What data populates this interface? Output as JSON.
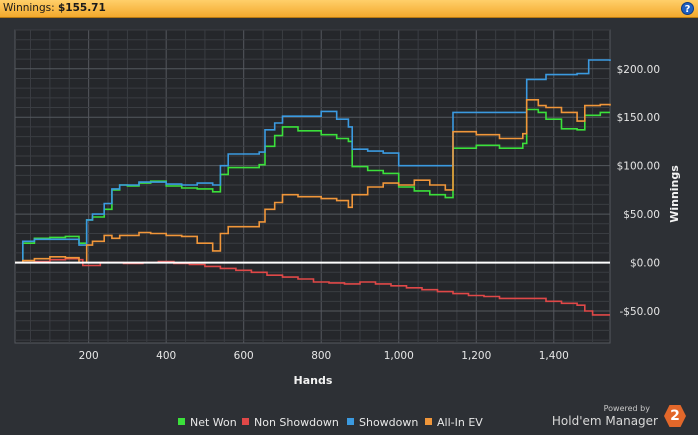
{
  "header": {
    "label": "Winnings:",
    "value": "$155.71",
    "help_icon": "question-icon",
    "help_glyph": "?"
  },
  "brand": {
    "powered_by": "Powered by",
    "name": "Hold'em Manager",
    "badge": "2"
  },
  "chart_data": {
    "type": "line",
    "title": "",
    "xlabel": "Hands",
    "ylabel": "Winnings",
    "xlim": [
      10,
      1545
    ],
    "ylim": [
      -83,
      240
    ],
    "x_ticks": [
      200,
      400,
      600,
      800,
      1000,
      1200,
      1400
    ],
    "x_tick_labels": [
      "200",
      "400",
      "600",
      "800",
      "1,000",
      "1,200",
      "1,400"
    ],
    "y_ticks": [
      -50,
      0,
      50,
      100,
      150,
      200
    ],
    "y_tick_labels": [
      "-$50.00",
      "$0.00",
      "$50.00",
      "$100.00",
      "$150.00",
      "$200.00"
    ],
    "grid": true,
    "zero_line": true,
    "legend_position": "bottom",
    "series": [
      {
        "name": "Net Won",
        "color": "#3be03b",
        "x": [
          10,
          30,
          60,
          100,
          140,
          175,
          195,
          210,
          240,
          260,
          280,
          300,
          330,
          360,
          400,
          440,
          480,
          520,
          540,
          560,
          600,
          640,
          655,
          680,
          700,
          740,
          800,
          840,
          870,
          880,
          920,
          960,
          1000,
          1040,
          1080,
          1120,
          1140,
          1200,
          1260,
          1320,
          1330,
          1360,
          1380,
          1420,
          1460,
          1480,
          1520,
          1545
        ],
        "y": [
          0,
          20,
          25,
          26,
          27,
          20,
          44,
          47,
          55,
          75,
          80,
          79,
          82,
          84,
          79,
          77,
          76,
          73,
          91,
          98,
          98,
          101,
          120,
          131,
          140,
          136,
          132,
          128,
          125,
          99,
          95,
          92,
          78,
          74,
          70,
          67,
          118,
          121,
          118,
          123,
          158,
          155,
          148,
          138,
          137,
          152,
          155,
          155
        ]
      },
      {
        "name": "Non Showdown",
        "color": "#e04848",
        "x": [
          10,
          60,
          100,
          140,
          175,
          185,
          230,
          290,
          340,
          380,
          420,
          460,
          500,
          540,
          580,
          620,
          660,
          700,
          740,
          780,
          820,
          860,
          900,
          940,
          980,
          1020,
          1060,
          1100,
          1140,
          1180,
          1220,
          1260,
          1300,
          1340,
          1380,
          1420,
          1460,
          1480,
          1500,
          1545
        ],
        "y": [
          0,
          1,
          3,
          4,
          3,
          -3,
          0,
          -1,
          0,
          1,
          -1,
          -2,
          -4,
          -6,
          -8,
          -10,
          -13,
          -15,
          -17,
          -20,
          -21,
          -22,
          -20,
          -22,
          -24,
          -26,
          -28,
          -30,
          -32,
          -34,
          -35,
          -37,
          -37,
          -37,
          -40,
          -42,
          -44,
          -50,
          -54,
          -54
        ]
      },
      {
        "name": "Showdown",
        "color": "#3b9ae0",
        "x": [
          10,
          30,
          60,
          100,
          140,
          175,
          195,
          210,
          240,
          260,
          280,
          330,
          360,
          400,
          440,
          480,
          520,
          540,
          560,
          600,
          640,
          655,
          680,
          700,
          740,
          800,
          840,
          870,
          880,
          920,
          960,
          1000,
          1040,
          1120,
          1140,
          1200,
          1260,
          1320,
          1330,
          1380,
          1420,
          1460,
          1490,
          1545
        ],
        "y": [
          0,
          22,
          24,
          24,
          24,
          18,
          44,
          50,
          61,
          76,
          80,
          83,
          83,
          81,
          80,
          82,
          80,
          100,
          112,
          112,
          114,
          137,
          144,
          151,
          151,
          156,
          148,
          140,
          117,
          115,
          113,
          100,
          100,
          100,
          155,
          155,
          155,
          155,
          189,
          194,
          194,
          195,
          209,
          208
        ]
      },
      {
        "name": "All-In EV",
        "color": "#f0963a",
        "x": [
          10,
          30,
          60,
          100,
          140,
          175,
          195,
          210,
          240,
          260,
          280,
          330,
          360,
          400,
          440,
          480,
          520,
          540,
          560,
          600,
          640,
          655,
          680,
          700,
          740,
          800,
          840,
          870,
          880,
          920,
          960,
          1000,
          1040,
          1080,
          1120,
          1140,
          1200,
          1260,
          1320,
          1330,
          1360,
          1380,
          1420,
          1460,
          1480,
          1520,
          1545
        ],
        "y": [
          0,
          2,
          4,
          6,
          5,
          0,
          18,
          22,
          28,
          25,
          28,
          31,
          30,
          28,
          27,
          20,
          12,
          30,
          37,
          37,
          42,
          55,
          62,
          70,
          68,
          66,
          64,
          57,
          70,
          78,
          82,
          80,
          85,
          80,
          75,
          135,
          132,
          128,
          133,
          168,
          162,
          160,
          155,
          146,
          162,
          163,
          162
        ]
      }
    ]
  }
}
